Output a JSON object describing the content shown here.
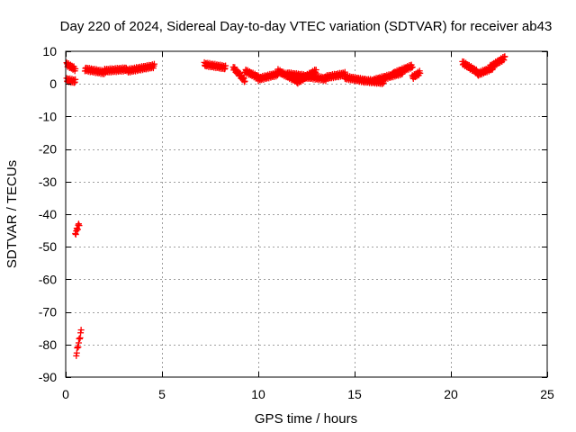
{
  "chart_data": {
    "type": "scatter",
    "title": "Day 220 of 2024, Sidereal Day-to-day VTEC variation (SDTVAR) for receiver ab43",
    "xlabel": "GPS time / hours",
    "ylabel": "SDTVAR / TECUs",
    "xlim": [
      0,
      25
    ],
    "ylim": [
      -90,
      10
    ],
    "xticks": [
      0,
      5,
      10,
      15,
      20,
      25
    ],
    "yticks": [
      10,
      0,
      -10,
      -20,
      -30,
      -40,
      -50,
      -60,
      -70,
      -80,
      -90
    ],
    "grid": true,
    "marker": "plus",
    "color": "#ff0000",
    "segments": [
      {
        "x": [
          0.05,
          0.5
        ],
        "y": [
          6,
          4.5
        ]
      },
      {
        "x": [
          0.05,
          0.5
        ],
        "y": [
          1.2,
          0.8
        ]
      },
      {
        "x": [
          0.5,
          0.7
        ],
        "y": [
          -46,
          -43
        ]
      },
      {
        "x": [
          0.55,
          0.8
        ],
        "y": [
          -83,
          -76
        ]
      },
      {
        "x": [
          1.0,
          2.0
        ],
        "y": [
          4.5,
          3.5
        ]
      },
      {
        "x": [
          2.0,
          3.2
        ],
        "y": [
          4.0,
          4.5
        ]
      },
      {
        "x": [
          3.2,
          4.6
        ],
        "y": [
          4.0,
          5.5
        ]
      },
      {
        "x": [
          7.2,
          8.3
        ],
        "y": [
          6.0,
          5.0
        ]
      },
      {
        "x": [
          8.7,
          9.3
        ],
        "y": [
          5.0,
          1.0
        ]
      },
      {
        "x": [
          9.3,
          10.0
        ],
        "y": [
          4.0,
          2.0
        ]
      },
      {
        "x": [
          10.0,
          11.0
        ],
        "y": [
          1.5,
          3.0
        ]
      },
      {
        "x": [
          11.0,
          12.0
        ],
        "y": [
          4.0,
          1.0
        ]
      },
      {
        "x": [
          11.5,
          13.5
        ],
        "y": [
          3.0,
          1.5
        ]
      },
      {
        "x": [
          12.0,
          13.0
        ],
        "y": [
          0.5,
          4.0
        ]
      },
      {
        "x": [
          13.5,
          14.5
        ],
        "y": [
          2.0,
          3.0
        ]
      },
      {
        "x": [
          14.5,
          15.5
        ],
        "y": [
          2.0,
          1.0
        ]
      },
      {
        "x": [
          15.5,
          16.5
        ],
        "y": [
          1.0,
          0.5
        ]
      },
      {
        "x": [
          16.0,
          17.5
        ],
        "y": [
          1.0,
          3.5
        ]
      },
      {
        "x": [
          17.0,
          18.0
        ],
        "y": [
          3.0,
          5.5
        ]
      },
      {
        "x": [
          18.0,
          18.4
        ],
        "y": [
          2.0,
          3.5
        ]
      },
      {
        "x": [
          20.6,
          21.4
        ],
        "y": [
          6.5,
          3.5
        ]
      },
      {
        "x": [
          21.4,
          22.2
        ],
        "y": [
          3.0,
          5.0
        ]
      },
      {
        "x": [
          22.0,
          22.8
        ],
        "y": [
          5.0,
          8.0
        ]
      }
    ]
  }
}
